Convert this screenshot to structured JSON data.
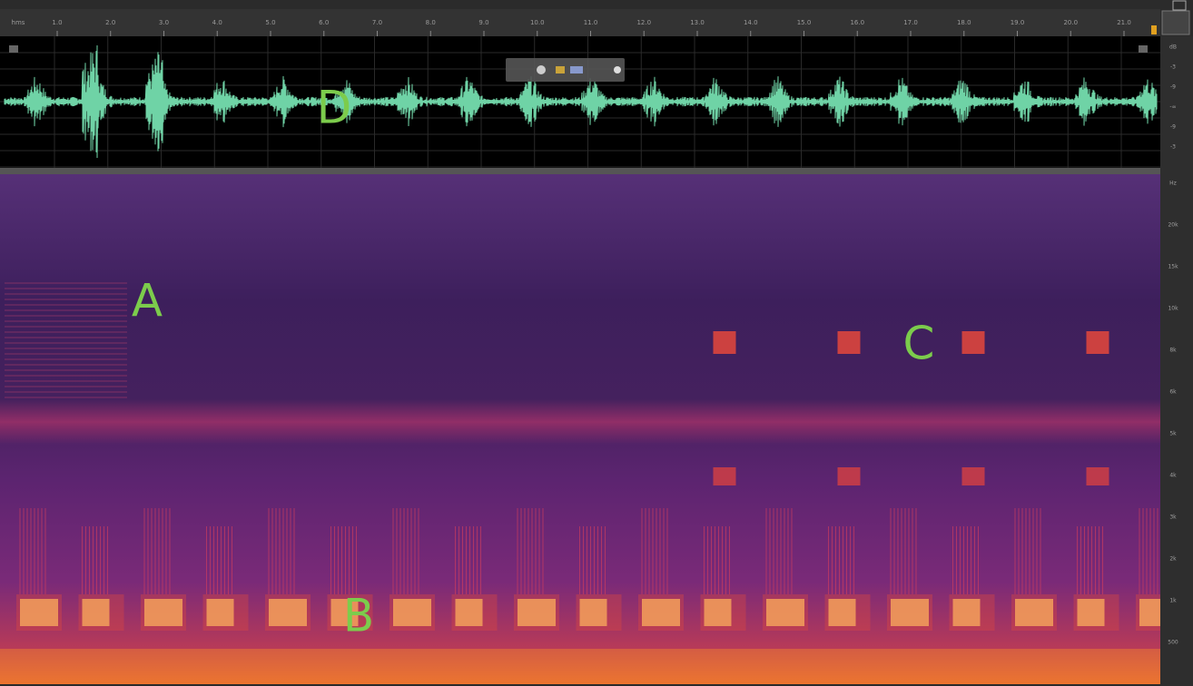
{
  "ruler": {
    "unit": "hms",
    "labels": [
      "1.0",
      "2.0",
      "3.0",
      "4.0",
      "5.0",
      "6.0",
      "7.0",
      "8.0",
      "9.0",
      "10.0",
      "11.0",
      "12.0",
      "13.0",
      "14.0",
      "15.0",
      "16.0",
      "17.0",
      "18.0",
      "19.0",
      "20.0",
      "21.0"
    ]
  },
  "annotations": {
    "a": "A",
    "b": "B",
    "c": "C",
    "d": "D"
  },
  "amplitude_scale": [
    "dB",
    "-3",
    "-9",
    "-∞",
    "-9",
    "-3"
  ],
  "frequency_scale": [
    "Hz",
    "20k",
    "15k",
    "10k",
    "8k",
    "6k",
    "5k",
    "4k",
    "3k",
    "2k",
    "1k",
    "500"
  ]
}
